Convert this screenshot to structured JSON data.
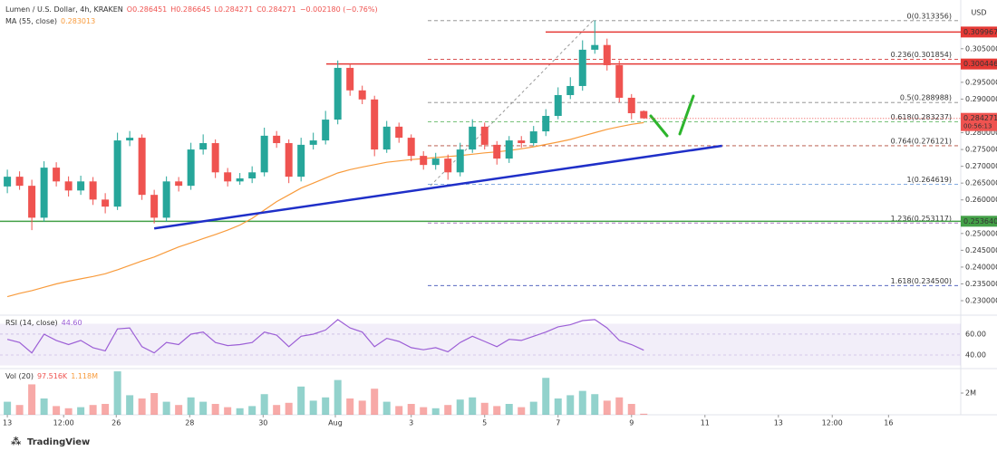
{
  "chart_data": [
    {
      "type": "candlestick",
      "title": "Lumen / U.S. Dollar, 4h, KRAKEN",
      "quote": [
        "O0.286451",
        "H0.286645",
        "L0.284271",
        "C0.284271",
        "−0.002180 (−0.76%)"
      ],
      "currency": "USD",
      "countdown": "00:56:13",
      "up_color": "#26a69a",
      "down_color": "#ef5350",
      "open": [
        0.264,
        0.2669,
        0.2642,
        0.2547,
        0.2696,
        0.2655,
        0.2628,
        0.2655,
        0.2601,
        0.258,
        0.2777,
        0.2785,
        0.2615,
        0.2547,
        0.2655,
        0.2642,
        0.275,
        0.2769,
        0.2682,
        0.2655,
        0.2664,
        0.2682,
        0.2791,
        0.2769,
        0.2669,
        0.2764,
        0.2777,
        0.2839,
        0.2993,
        0.2926,
        0.2899,
        0.275,
        0.2818,
        0.2785,
        0.2731,
        0.2704,
        0.2723,
        0.2682,
        0.275,
        0.2818,
        0.2764,
        0.2723,
        0.2777,
        0.2769,
        0.2804,
        0.285,
        0.2912,
        0.2939,
        0.3047,
        0.3061,
        0.3001,
        0.2904,
        0.286451
      ],
      "high": [
        0.269,
        0.2685,
        0.266,
        0.2715,
        0.2712,
        0.267,
        0.2672,
        0.2668,
        0.262,
        0.28,
        0.2805,
        0.2795,
        0.263,
        0.267,
        0.2668,
        0.277,
        0.2795,
        0.278,
        0.2695,
        0.268,
        0.27,
        0.2815,
        0.2805,
        0.278,
        0.2785,
        0.28,
        0.2865,
        0.3015,
        0.3005,
        0.294,
        0.291,
        0.2835,
        0.283,
        0.2795,
        0.2745,
        0.274,
        0.2735,
        0.277,
        0.284,
        0.283,
        0.2775,
        0.279,
        0.279,
        0.282,
        0.287,
        0.2935,
        0.2965,
        0.3075,
        0.3134,
        0.308,
        0.3015,
        0.2915,
        0.286645
      ],
      "low": [
        0.262,
        0.263,
        0.251,
        0.2535,
        0.264,
        0.261,
        0.2615,
        0.2585,
        0.256,
        0.257,
        0.276,
        0.26,
        0.253,
        0.2535,
        0.2625,
        0.263,
        0.2735,
        0.2665,
        0.264,
        0.2645,
        0.265,
        0.267,
        0.2755,
        0.265,
        0.2655,
        0.275,
        0.2765,
        0.2825,
        0.291,
        0.2885,
        0.273,
        0.274,
        0.277,
        0.2715,
        0.269,
        0.269,
        0.266,
        0.267,
        0.274,
        0.275,
        0.2705,
        0.271,
        0.2755,
        0.276,
        0.279,
        0.284,
        0.29,
        0.2925,
        0.3035,
        0.2985,
        0.289,
        0.284,
        0.284271
      ],
      "close": [
        0.2669,
        0.2642,
        0.2547,
        0.2696,
        0.2655,
        0.2628,
        0.2655,
        0.2601,
        0.258,
        0.2777,
        0.2785,
        0.2615,
        0.2547,
        0.2655,
        0.2642,
        0.275,
        0.2769,
        0.2682,
        0.2655,
        0.2664,
        0.2682,
        0.2791,
        0.2769,
        0.2669,
        0.2764,
        0.2777,
        0.2839,
        0.2993,
        0.2926,
        0.2899,
        0.275,
        0.2818,
        0.2785,
        0.2731,
        0.2704,
        0.2723,
        0.2682,
        0.275,
        0.2818,
        0.2764,
        0.2723,
        0.2777,
        0.2769,
        0.2804,
        0.285,
        0.2912,
        0.2939,
        0.3047,
        0.3061,
        0.3001,
        0.2904,
        0.2858,
        0.284271
      ],
      "ma": {
        "name": "MA (55, close)",
        "color": "#f89b3c",
        "values": [
          0.2312,
          0.2322,
          0.233,
          0.234,
          0.235,
          0.2358,
          0.2365,
          0.2372,
          0.238,
          0.2392,
          0.2405,
          0.2418,
          0.243,
          0.2445,
          0.246,
          0.2472,
          0.2485,
          0.2497,
          0.251,
          0.2525,
          0.2545,
          0.257,
          0.2595,
          0.2615,
          0.2635,
          0.265,
          0.2665,
          0.268,
          0.269,
          0.2698,
          0.2705,
          0.2712,
          0.2716,
          0.272,
          0.2723,
          0.2726,
          0.2729,
          0.2732,
          0.2736,
          0.274,
          0.2743,
          0.2747,
          0.2752,
          0.2758,
          0.2765,
          0.2772,
          0.278,
          0.279,
          0.28,
          0.281,
          0.2818,
          0.2825,
          0.283013
        ]
      },
      "fib_levels": [
        {
          "value": 0.313356,
          "label": "0(0.313356)",
          "color": "#888888"
        },
        {
          "value": 0.301854,
          "label": "0.236(0.301854)",
          "color": "#d23c3c"
        },
        {
          "value": 0.288988,
          "label": "0.5(0.288988)",
          "color": "#888888"
        },
        {
          "value": 0.283237,
          "label": "0.618(0.283237)",
          "color": "#4caf50"
        },
        {
          "value": 0.276121,
          "label": "0.764(0.276121)",
          "color": "#b04a3a"
        },
        {
          "value": 0.264619,
          "label": "1(0.264619)",
          "color": "#5b8fd6"
        },
        {
          "value": 0.253117,
          "label": "1.236(0.253117)",
          "color": "#9b59b6"
        },
        {
          "value": 0.2345,
          "label": "1.618(0.234500)",
          "color": "#3f51b5"
        }
      ],
      "horizontal_lines": [
        {
          "value": 0.309967,
          "label": "0.309967",
          "color": "#e53935"
        },
        {
          "value": 0.300446,
          "label": "0.300446",
          "color": "#e53935"
        },
        {
          "value": 0.25364,
          "label": "0.253640",
          "color": "#43a047"
        }
      ],
      "trendline": {
        "x": [
          12.0,
          58.4
        ],
        "values": [
          0.2515,
          0.2761
        ],
        "color": "#1f2fc8"
      },
      "xlim": [
        -0.6,
        77.9
      ],
      "xticks": [
        {
          "value": 0,
          "label": "13"
        },
        {
          "value": 4.6,
          "label": "12:00"
        },
        {
          "value": 8.9,
          "label": "26"
        },
        {
          "value": 14.9,
          "label": "28"
        },
        {
          "value": 20.9,
          "label": "30"
        },
        {
          "value": 26.8,
          "label": "Aug"
        },
        {
          "value": 33,
          "label": "3"
        },
        {
          "value": 39,
          "label": "5"
        },
        {
          "value": 45,
          "label": "7"
        },
        {
          "value": 51,
          "label": "9"
        },
        {
          "value": 57,
          "label": "11"
        },
        {
          "value": 63,
          "label": "13"
        },
        {
          "value": 67.4,
          "label": "12:00"
        },
        {
          "value": 72,
          "label": "16"
        }
      ],
      "ylim": [
        0.2265,
        0.3195
      ],
      "yticks": [
        {
          "value": 0.23,
          "label": "0.230000"
        },
        {
          "value": 0.235,
          "label": "0.235000"
        },
        {
          "value": 0.24,
          "label": "0.240000"
        },
        {
          "value": 0.245,
          "label": "0.245000"
        },
        {
          "value": 0.25,
          "label": "0.250000"
        },
        {
          "value": 0.26,
          "label": "0.260000"
        },
        {
          "value": 0.265,
          "label": "0.265000"
        },
        {
          "value": 0.27,
          "label": "0.270000"
        },
        {
          "value": 0.275,
          "label": "0.275000"
        },
        {
          "value": 0.28,
          "label": "0.280000"
        },
        {
          "value": 0.29,
          "label": "0.290000"
        },
        {
          "value": 0.295,
          "label": "0.295000"
        },
        {
          "value": 0.305,
          "label": "0.305000"
        }
      ]
    },
    {
      "type": "line",
      "name": "RSI (14, close)",
      "current_label": "44.60",
      "color": "#9c5fd6",
      "values": [
        55,
        52,
        42,
        60,
        54,
        50,
        54,
        47,
        44,
        65,
        66,
        48,
        42,
        52,
        50,
        60,
        62,
        52,
        49,
        50,
        52,
        62,
        59,
        48,
        58,
        60,
        64,
        74,
        66,
        62,
        48,
        56,
        53,
        47,
        45,
        47,
        43,
        52,
        58,
        53,
        48,
        55,
        54,
        58,
        62,
        67,
        69,
        73,
        74,
        66,
        54,
        50,
        44.6
      ],
      "band": [
        30,
        70
      ],
      "ylim": [
        28.7,
        76.5
      ],
      "yticks": [
        {
          "value": 40,
          "label": "40.00"
        },
        {
          "value": 60,
          "label": "60.00"
        }
      ]
    },
    {
      "type": "bar",
      "name": "Vol (20)",
      "current_labels": [
        "97.516K",
        "1.118M"
      ],
      "values": [
        1200000,
        900000,
        2800000,
        1500000,
        800000,
        600000,
        700000,
        900000,
        1000000,
        4000000,
        1800000,
        1500000,
        2000000,
        1200000,
        900000,
        1600000,
        1200000,
        1000000,
        700000,
        600000,
        800000,
        1900000,
        900000,
        1100000,
        2600000,
        1300000,
        1600000,
        3200000,
        1500000,
        1300000,
        2400000,
        1200000,
        800000,
        1000000,
        700000,
        600000,
        900000,
        1400000,
        1600000,
        1100000,
        800000,
        1000000,
        700000,
        1200000,
        3400000,
        1500000,
        1800000,
        2200000,
        1900000,
        1300000,
        1600000,
        1000000,
        97516
      ],
      "ylim": [
        0,
        4170000
      ],
      "yticks": [
        {
          "value": 2000000,
          "label": "2M"
        }
      ]
    }
  ],
  "footer": {
    "brand": "TradingView"
  }
}
